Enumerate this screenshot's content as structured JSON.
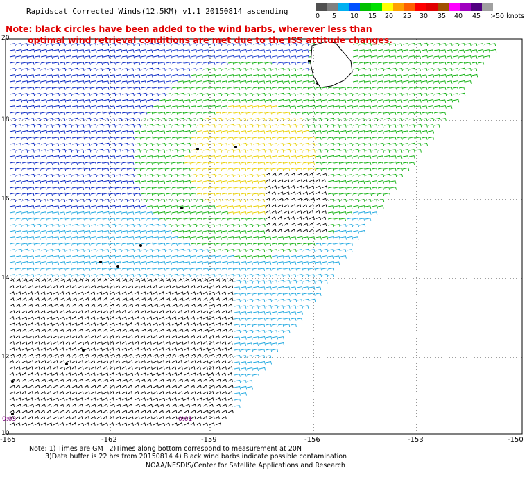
{
  "title": "Rapidscat Corrected Winds(12.5KM) v1.1 20150814 ascending",
  "note_line1": "Note: black circles have been added to the wind barbs, wherever less than",
  "note_line2": "optimal wind retrieval conditions are met due to the ISS attitude changes.",
  "legend": {
    "labels": [
      "0",
      "5",
      "10",
      "15",
      "20",
      "25",
      "30",
      "35",
      "40",
      "45",
      ">50 knots"
    ],
    "colors": [
      "#505050",
      "#808080",
      "#00b0f0",
      "#0050ff",
      "#00c000",
      "#00e000",
      "#ffff00",
      "#ffa000",
      "#ff6000",
      "#ff0000",
      "#e00000",
      "#a05000",
      "#ff00ff",
      "#a000c0",
      "#500080",
      "#a0a0a0"
    ]
  },
  "axes": {
    "x_ticks": [
      "-165",
      "-162",
      "-159",
      "-156",
      "-153",
      "-150"
    ],
    "y_ticks": [
      "20",
      "18",
      "16",
      "14",
      "12",
      "10"
    ]
  },
  "time_labels": [
    "0:03",
    "0:01"
  ],
  "footer": {
    "line1": "Note: 1) Times are GMT 2)Times along bottom correspond to measurement at 20N",
    "line2": "3)Data buffer is 22 hrs from 20150814 4) Black wind barbs indicate possible contamination",
    "line3": "NOAA/NESDIS/Center for Satellite Applications and Research"
  }
}
